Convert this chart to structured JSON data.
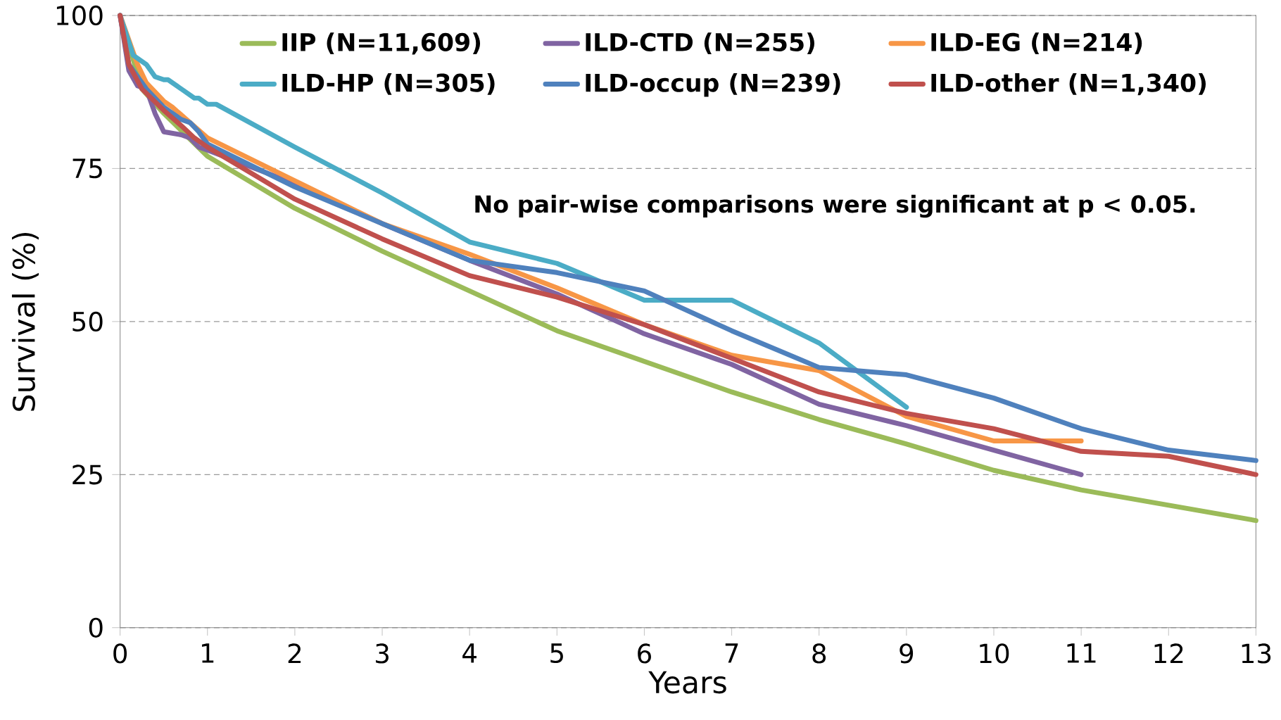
{
  "chart_data": {
    "type": "line",
    "xlabel": "Years",
    "ylabel": "Survival (%)",
    "annotations": [
      "No pair-wise comparisons were significant at p < 0.05."
    ],
    "xlim": [
      0,
      13
    ],
    "ylim": [
      0,
      100
    ],
    "xticks": [
      0,
      1,
      2,
      3,
      4,
      5,
      6,
      7,
      8,
      9,
      10,
      11,
      12,
      13
    ],
    "yticks": [
      0,
      25,
      50,
      75,
      100
    ],
    "grid": "y",
    "legend": "top",
    "series": [
      {
        "name": "IIP (N=11,609)",
        "color": "#9bbb59",
        "x": [
          0,
          0.25,
          0.5,
          1,
          2,
          3,
          4,
          5,
          6,
          7,
          8,
          9,
          10,
          11,
          12,
          13
        ],
        "values": [
          100,
          88,
          84,
          77,
          68.5,
          61.5,
          55,
          48.5,
          43.5,
          38.5,
          34,
          30,
          25.7,
          22.5,
          20,
          17.5
        ]
      },
      {
        "name": "ILD-CTD (N=255)",
        "color": "#8064a2",
        "x": [
          0,
          0.1,
          0.2,
          0.3,
          0.4,
          0.5,
          0.7,
          0.8,
          0.9,
          1,
          2,
          3,
          4,
          5,
          6,
          7,
          8,
          9,
          10,
          11
        ],
        "values": [
          100,
          91,
          88.5,
          88,
          84,
          81,
          80.5,
          80,
          78.5,
          78,
          72.5,
          66,
          60,
          54.5,
          48,
          43,
          36.5,
          33,
          29,
          25
        ]
      },
      {
        "name": "ILD-EG (N=214)",
        "color": "#f79646",
        "x": [
          0,
          0.2,
          0.3,
          0.5,
          0.6,
          0.8,
          1,
          2,
          3,
          4,
          5,
          6,
          7,
          8,
          9,
          10,
          11
        ],
        "values": [
          100,
          92,
          89,
          86,
          85,
          82.5,
          80,
          73,
          66,
          61,
          55.5,
          49.5,
          44.5,
          42,
          34.5,
          30.5,
          30.5
        ]
      },
      {
        "name": "ILD-HP (N=305)",
        "color": "#4bacc6",
        "x": [
          0,
          0.15,
          0.3,
          0.4,
          0.5,
          0.55,
          0.7,
          0.85,
          0.9,
          1,
          1.1,
          2,
          3,
          4,
          5,
          6,
          7,
          8,
          9
        ],
        "values": [
          100,
          93.5,
          92,
          90,
          89.5,
          89.5,
          88,
          86.5,
          86.5,
          85.5,
          85.5,
          78.5,
          71,
          63,
          59.5,
          53.5,
          53.5,
          46.5,
          36
        ]
      },
      {
        "name": "ILD-occup (N=239)",
        "color": "#4f81bd",
        "x": [
          0,
          0.1,
          0.3,
          0.5,
          0.7,
          0.8,
          0.9,
          1,
          2,
          3,
          4,
          5,
          6,
          7,
          8,
          9,
          10,
          11,
          12,
          13
        ],
        "values": [
          100,
          92,
          88,
          85,
          83,
          82.5,
          81,
          79,
          72,
          66,
          60,
          58,
          55,
          48.5,
          42.5,
          41.3,
          37.5,
          32.5,
          29,
          27.3
        ]
      },
      {
        "name": "ILD-other (N=1,340)",
        "color": "#c0504d",
        "x": [
          0,
          0.1,
          0.25,
          0.5,
          0.7,
          0.85,
          1,
          2,
          3,
          4,
          5,
          6,
          7,
          8,
          9,
          10,
          11,
          12,
          13
        ],
        "values": [
          100,
          92,
          88,
          84.5,
          82,
          80,
          78.5,
          70,
          63.5,
          57.5,
          54,
          49.5,
          44,
          38.5,
          35,
          32.5,
          28.8,
          28,
          25
        ]
      }
    ]
  }
}
